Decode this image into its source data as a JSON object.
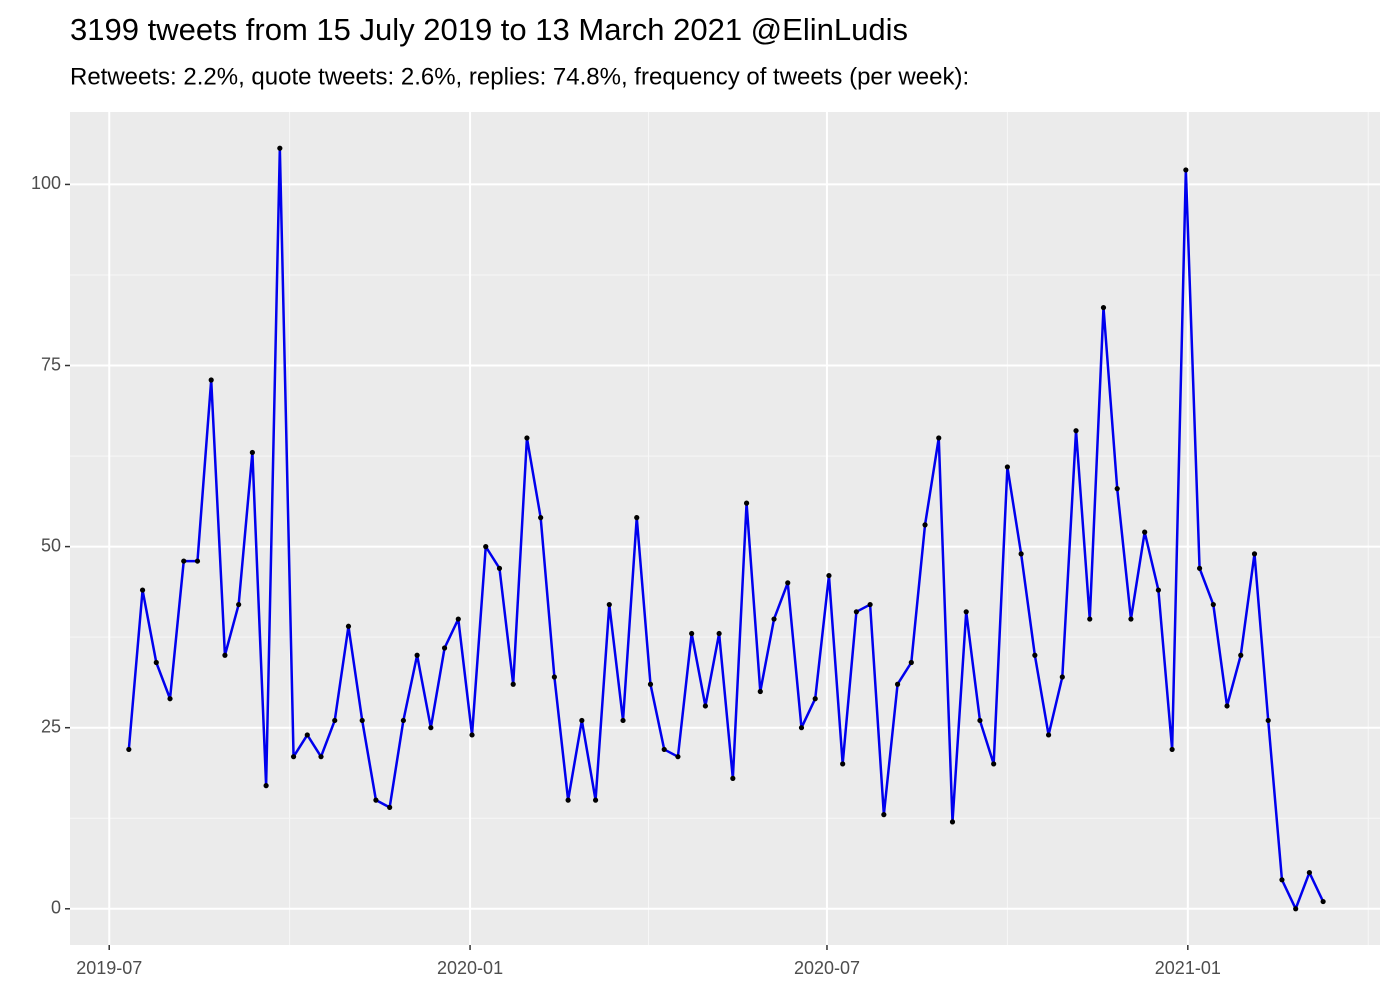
{
  "chart_data": {
    "type": "line",
    "title": "3199 tweets from 15 July 2019 to 13 March 2021 @ElinLudis",
    "subtitle": "Retweets: 2.2%, quote tweets: 2.6%, replies: 74.8%, frequency of tweets (per week):",
    "x": [
      "2019-07-11",
      "2019-07-18",
      "2019-07-25",
      "2019-08-01",
      "2019-08-08",
      "2019-08-15",
      "2019-08-22",
      "2019-08-29",
      "2019-09-05",
      "2019-09-12",
      "2019-09-19",
      "2019-09-26",
      "2019-10-03",
      "2019-10-10",
      "2019-10-17",
      "2019-10-24",
      "2019-10-31",
      "2019-11-07",
      "2019-11-14",
      "2019-11-21",
      "2019-11-28",
      "2019-12-05",
      "2019-12-12",
      "2019-12-19",
      "2019-12-26",
      "2020-01-02",
      "2020-01-09",
      "2020-01-16",
      "2020-01-23",
      "2020-01-30",
      "2020-02-06",
      "2020-02-13",
      "2020-02-20",
      "2020-02-27",
      "2020-03-05",
      "2020-03-12",
      "2020-03-19",
      "2020-03-26",
      "2020-04-02",
      "2020-04-09",
      "2020-04-16",
      "2020-04-23",
      "2020-04-30",
      "2020-05-07",
      "2020-05-14",
      "2020-05-21",
      "2020-05-28",
      "2020-06-04",
      "2020-06-11",
      "2020-06-18",
      "2020-06-25",
      "2020-07-02",
      "2020-07-09",
      "2020-07-16",
      "2020-07-23",
      "2020-07-30",
      "2020-08-06",
      "2020-08-13",
      "2020-08-20",
      "2020-08-27",
      "2020-09-03",
      "2020-09-10",
      "2020-09-17",
      "2020-09-24",
      "2020-10-01",
      "2020-10-08",
      "2020-10-15",
      "2020-10-22",
      "2020-10-29",
      "2020-11-05",
      "2020-11-12",
      "2020-11-19",
      "2020-11-26",
      "2020-12-03",
      "2020-12-10",
      "2020-12-17",
      "2020-12-24",
      "2020-12-31",
      "2021-01-07",
      "2021-01-14",
      "2021-01-21",
      "2021-01-28",
      "2021-02-04",
      "2021-02-11",
      "2021-02-18",
      "2021-02-25",
      "2021-03-04",
      "2021-03-11"
    ],
    "values": [
      22,
      44,
      34,
      29,
      48,
      48,
      73,
      35,
      42,
      63,
      17,
      105,
      21,
      24,
      21,
      26,
      39,
      26,
      15,
      14,
      26,
      35,
      25,
      36,
      40,
      24,
      50,
      47,
      31,
      65,
      54,
      32,
      15,
      26,
      15,
      42,
      26,
      54,
      31,
      22,
      21,
      38,
      28,
      38,
      18,
      56,
      30,
      40,
      45,
      25,
      29,
      46,
      20,
      41,
      42,
      13,
      31,
      34,
      53,
      65,
      12,
      41,
      26,
      20,
      61,
      49,
      35,
      24,
      32,
      66,
      40,
      83,
      58,
      40,
      52,
      44,
      22,
      102,
      47,
      42,
      28,
      35,
      49,
      26,
      4,
      0,
      5,
      1
    ],
    "color": "#0000ee",
    "point_color": "#000000",
    "xlim": [
      "2019-06-11",
      "2021-04-09"
    ],
    "xticks": [
      {
        "value": "2019-07-01",
        "label": "2019-07"
      },
      {
        "value": "2020-01-01",
        "label": "2020-01"
      },
      {
        "value": "2020-07-01",
        "label": "2020-07"
      },
      {
        "value": "2021-01-01",
        "label": "2021-01"
      }
    ],
    "ylim": [
      -5,
      110
    ],
    "yticks": [
      0,
      25,
      50,
      75,
      100
    ],
    "grid": true
  }
}
